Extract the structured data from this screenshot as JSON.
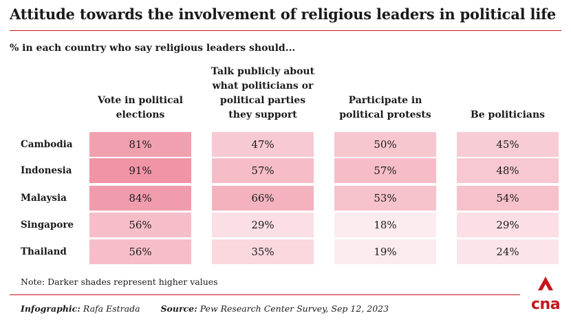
{
  "title": "Attitude towards the involvement of religious leaders in political life",
  "subtitle": "% in each country who say religious leaders should...",
  "columns": [
    [
      "Vote in political",
      "elections"
    ],
    [
      "Talk publicly about",
      "what politicians or",
      "political parties",
      "they support"
    ],
    [
      "Participate in",
      "political protests"
    ],
    [
      "Be politicians"
    ]
  ],
  "countries": [
    "Cambodia",
    "Indonesia",
    "Malaysia",
    "Singapore",
    "Thailand"
  ],
  "chart_data": {
    "type": "table",
    "title": "Attitude towards the involvement of religious leaders in political life",
    "subtitle": "% in each country who say religious leaders should...",
    "rows": [
      "Cambodia",
      "Indonesia",
      "Malaysia",
      "Singapore",
      "Thailand"
    ],
    "columns": [
      "Vote in political elections",
      "Talk publicly about what politicians or political parties they support",
      "Participate in political protests",
      "Be politicians"
    ],
    "values": [
      [
        81,
        47,
        50,
        45
      ],
      [
        91,
        57,
        57,
        48
      ],
      [
        84,
        66,
        53,
        54
      ],
      [
        56,
        29,
        18,
        29
      ],
      [
        56,
        35,
        19,
        24
      ]
    ],
    "unit": "%",
    "shading": "darker shades represent higher values",
    "colors": {
      "low": "#fdf0f2",
      "high": "#ef8fa2"
    }
  },
  "note": "Note: Darker shades represent higher values",
  "footer": {
    "infographic_label": "Infographic:",
    "infographic_value": "Rafa Estrada",
    "source_label": "Source:",
    "source_value": "Pew Research Center Survey, Sep 12, 2023"
  },
  "logo": {
    "text": "cna",
    "color": "#c4161c"
  }
}
